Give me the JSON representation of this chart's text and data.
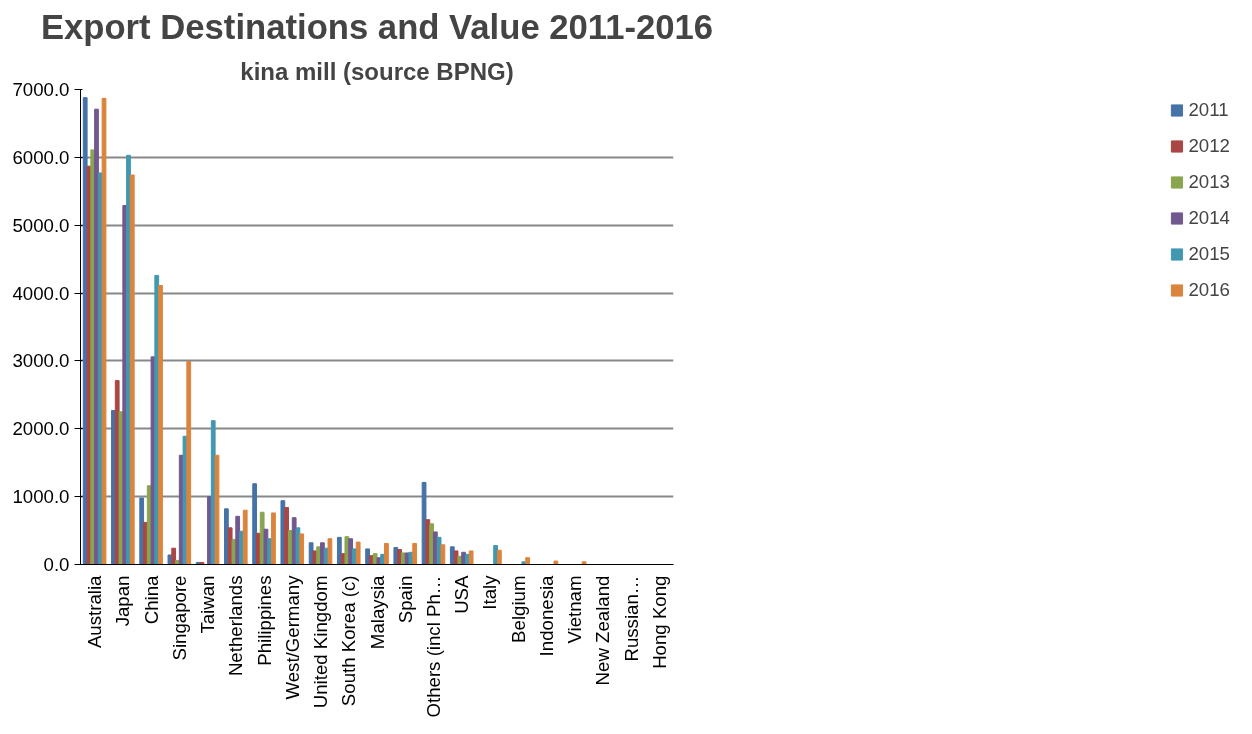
{
  "chart_data": {
    "type": "bar",
    "title": "Export Destinations and Value 2011-2016",
    "subtitle": "kina mill (source BPNG)",
    "categories": [
      "Australia",
      "Japan",
      "China",
      "Singapore",
      "Taiwan",
      "Netherlands",
      "Philippines",
      "West/Germany",
      "United Kingdom",
      "South Korea (c)",
      "Malaysia",
      "Spain",
      "Others (incl Ph…",
      "USA",
      "Italy",
      "Belgium",
      "Indonesia",
      "Vietnam",
      "New Zealand",
      "Russian…",
      "Hong Kong"
    ],
    "series": [
      {
        "name": "2011",
        "color": "#4572a7",
        "values": [
          6880,
          2270,
          980,
          140,
          30,
          820,
          1190,
          940,
          320,
          400,
          230,
          250,
          1210,
          260,
          0,
          0,
          0,
          0,
          0,
          0,
          0
        ]
      },
      {
        "name": "2012",
        "color": "#aa4643",
        "values": [
          5870,
          2710,
          620,
          240,
          30,
          540,
          460,
          840,
          200,
          160,
          130,
          220,
          660,
          200,
          0,
          0,
          0,
          0,
          0,
          0,
          0
        ]
      },
      {
        "name": "2013",
        "color": "#89a54e",
        "values": [
          6110,
          2250,
          1160,
          60,
          0,
          370,
          770,
          500,
          260,
          410,
          160,
          170,
          600,
          120,
          0,
          0,
          0,
          0,
          0,
          0,
          0
        ]
      },
      {
        "name": "2014",
        "color": "#71588f",
        "values": [
          6710,
          5290,
          3060,
          1610,
          1000,
          710,
          520,
          690,
          320,
          380,
          100,
          170,
          480,
          180,
          0,
          0,
          0,
          0,
          0,
          0,
          0
        ]
      },
      {
        "name": "2015",
        "color": "#4198af",
        "values": [
          5770,
          6030,
          4260,
          1890,
          2120,
          490,
          380,
          540,
          240,
          230,
          150,
          180,
          400,
          150,
          280,
          40,
          0,
          0,
          0,
          0,
          0
        ]
      },
      {
        "name": "2016",
        "color": "#db843d",
        "values": [
          6870,
          5740,
          4110,
          2990,
          1610,
          800,
          760,
          450,
          380,
          330,
          310,
          310,
          290,
          200,
          210,
          100,
          50,
          40,
          0,
          0,
          0
        ]
      }
    ],
    "ylim": [
      0,
      7000
    ],
    "yticks": [
      {
        "value": 0,
        "label": "0.0"
      },
      {
        "value": 1000,
        "label": "1000.0"
      },
      {
        "value": 2000,
        "label": "2000.0"
      },
      {
        "value": 3000,
        "label": "3000.0"
      },
      {
        "value": 4000,
        "label": "4000.0"
      },
      {
        "value": 5000,
        "label": "5000.0"
      },
      {
        "value": 6000,
        "label": "6000.0"
      },
      {
        "value": 7000,
        "label": "7000.0"
      }
    ],
    "grid": "y",
    "legend": "right"
  }
}
